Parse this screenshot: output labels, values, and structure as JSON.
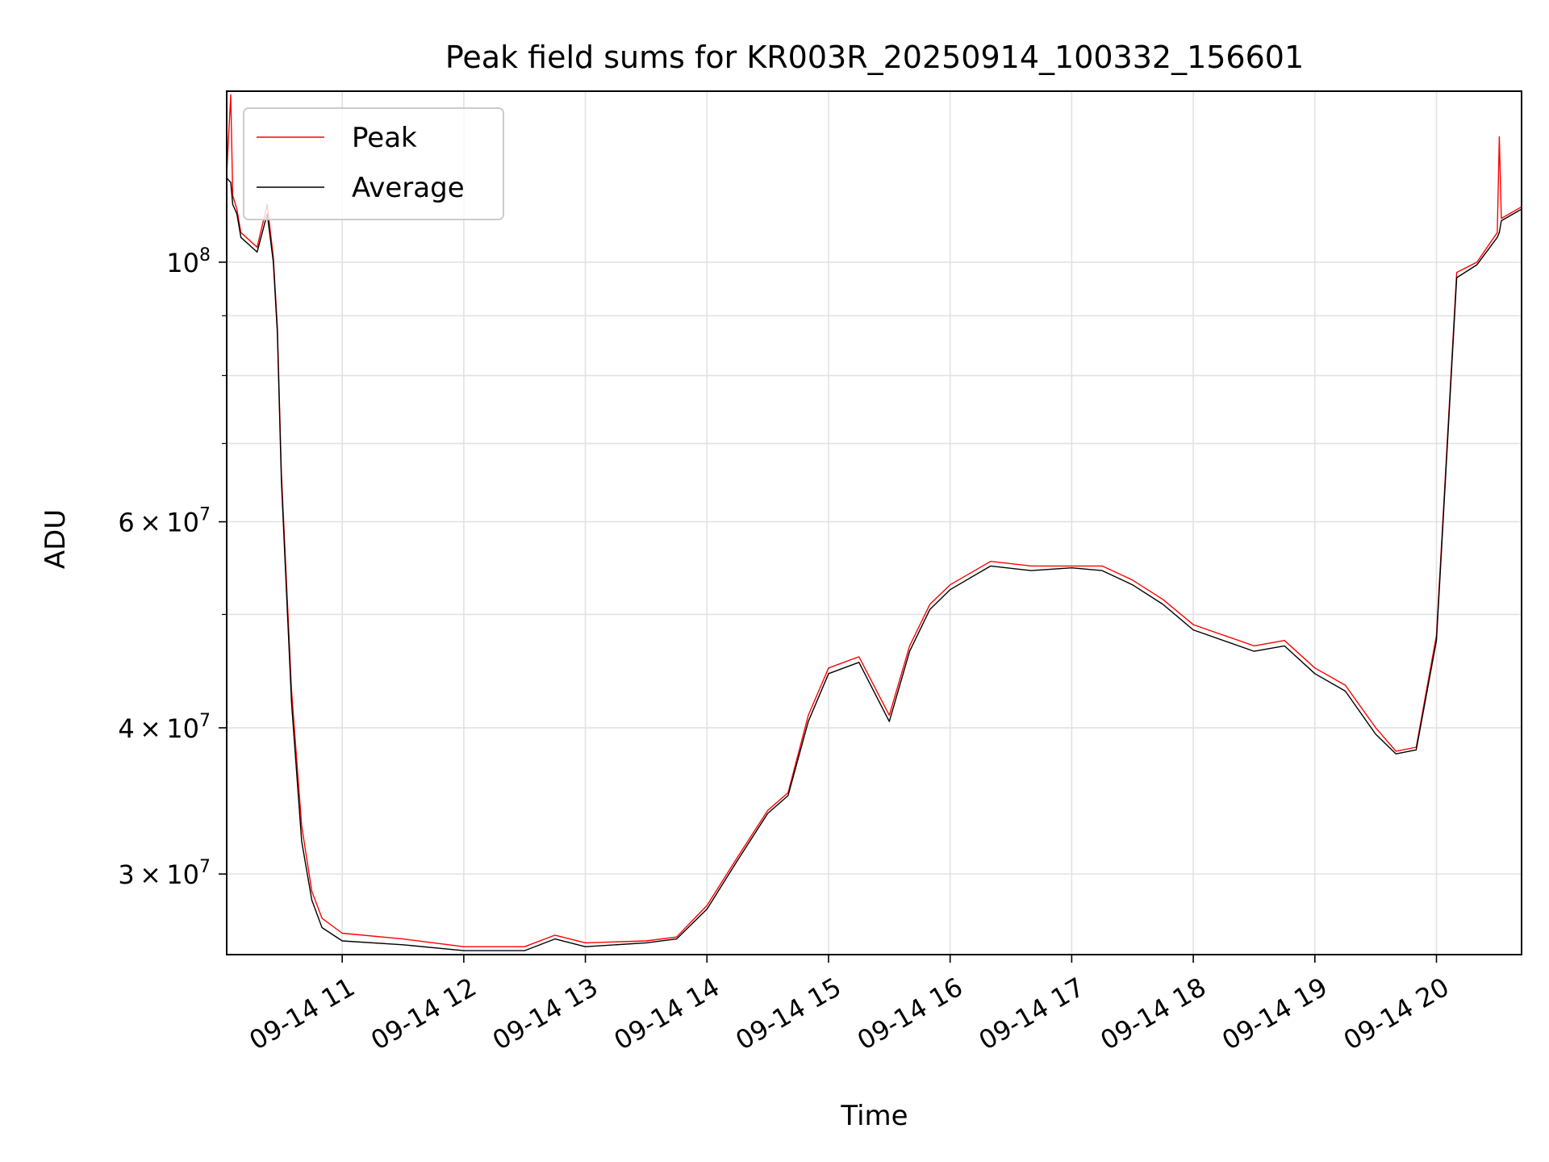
{
  "chart_data": {
    "type": "line",
    "title": "Peak field sums for KR003R_20250914_100332_156601",
    "xlabel": "Time",
    "ylabel": "ADU",
    "yscale": "log",
    "ylim": [
      25600000,
      140000000
    ],
    "xlim": [
      "2025-09-14T10:03",
      "2025-09-14T20:42"
    ],
    "grid": true,
    "legend": {
      "placement": "top-left",
      "entries": [
        "Peak",
        "Average"
      ]
    },
    "colors": {
      "Peak": "#ff0000",
      "Average": "#000000"
    },
    "x_ticks": [
      "09-14 11",
      "09-14 12",
      "09-14 13",
      "09-14 14",
      "09-14 15",
      "09-14 16",
      "09-14 17",
      "09-14 18",
      "09-14 19",
      "09-14 20"
    ],
    "y_ticks": [
      {
        "value": 100000000,
        "base": "10",
        "exp": "8",
        "coef": ""
      },
      {
        "value": 60000000,
        "base": "10",
        "exp": "7",
        "coef": "6"
      },
      {
        "value": 40000000,
        "base": "10",
        "exp": "7",
        "coef": "4"
      },
      {
        "value": 30000000,
        "base": "10",
        "exp": "7",
        "coef": "3"
      }
    ],
    "series": [
      {
        "name": "Peak",
        "x": [
          "2025-09-14T10:03",
          "2025-09-14T10:05",
          "2025-09-14T10:06",
          "2025-09-14T10:08",
          "2025-09-14T10:10",
          "2025-09-14T10:18",
          "2025-09-14T10:23",
          "2025-09-14T10:26",
          "2025-09-14T10:28",
          "2025-09-14T10:30",
          "2025-09-14T10:35",
          "2025-09-14T10:40",
          "2025-09-14T10:45",
          "2025-09-14T10:50",
          "2025-09-14T11:00",
          "2025-09-14T11:30",
          "2025-09-14T12:00",
          "2025-09-14T12:30",
          "2025-09-14T12:45",
          "2025-09-14T13:00",
          "2025-09-14T13:30",
          "2025-09-14T13:45",
          "2025-09-14T14:00",
          "2025-09-14T14:15",
          "2025-09-14T14:30",
          "2025-09-14T14:40",
          "2025-09-14T14:50",
          "2025-09-14T15:00",
          "2025-09-14T15:15",
          "2025-09-14T15:30",
          "2025-09-14T15:40",
          "2025-09-14T15:50",
          "2025-09-14T16:00",
          "2025-09-14T16:20",
          "2025-09-14T16:40",
          "2025-09-14T17:00",
          "2025-09-14T17:15",
          "2025-09-14T17:30",
          "2025-09-14T17:45",
          "2025-09-14T18:00",
          "2025-09-14T18:30",
          "2025-09-14T18:45",
          "2025-09-14T19:00",
          "2025-09-14T19:15",
          "2025-09-14T19:30",
          "2025-09-14T19:40",
          "2025-09-14T19:50",
          "2025-09-14T20:00",
          "2025-09-14T20:10",
          "2025-09-14T20:20",
          "2025-09-14T20:30",
          "2025-09-14T20:31",
          "2025-09-14T20:32",
          "2025-09-14T20:40",
          "2025-09-14T20:42"
        ],
        "y": [
          119000000,
          139000000,
          114000000,
          111000000,
          106000000,
          103000000,
          112000000,
          101000000,
          88000000,
          66000000,
          43000000,
          33000000,
          29000000,
          27500000,
          26700000,
          26400000,
          26000000,
          26000000,
          26600000,
          26200000,
          26300000,
          26500000,
          28200000,
          31000000,
          34000000,
          35200000,
          41000000,
          45000000,
          46000000,
          41000000,
          47000000,
          51000000,
          53000000,
          55500000,
          55000000,
          55000000,
          55000000,
          53500000,
          51500000,
          49000000,
          47000000,
          47500000,
          45000000,
          43500000,
          40000000,
          38200000,
          38500000,
          48000000,
          98000000,
          100000000,
          106000000,
          128000000,
          109000000,
          111000000,
          111500000
        ]
      },
      {
        "name": "Average",
        "x": [
          "2025-09-14T10:03",
          "2025-09-14T10:05",
          "2025-09-14T10:06",
          "2025-09-14T10:08",
          "2025-09-14T10:10",
          "2025-09-14T10:18",
          "2025-09-14T10:23",
          "2025-09-14T10:26",
          "2025-09-14T10:28",
          "2025-09-14T10:30",
          "2025-09-14T10:35",
          "2025-09-14T10:40",
          "2025-09-14T10:45",
          "2025-09-14T10:50",
          "2025-09-14T11:00",
          "2025-09-14T11:30",
          "2025-09-14T12:00",
          "2025-09-14T12:30",
          "2025-09-14T12:45",
          "2025-09-14T13:00",
          "2025-09-14T13:30",
          "2025-09-14T13:45",
          "2025-09-14T14:00",
          "2025-09-14T14:15",
          "2025-09-14T14:30",
          "2025-09-14T14:40",
          "2025-09-14T14:50",
          "2025-09-14T15:00",
          "2025-09-14T15:15",
          "2025-09-14T15:30",
          "2025-09-14T15:40",
          "2025-09-14T15:50",
          "2025-09-14T16:00",
          "2025-09-14T16:20",
          "2025-09-14T16:40",
          "2025-09-14T17:00",
          "2025-09-14T17:15",
          "2025-09-14T17:30",
          "2025-09-14T17:45",
          "2025-09-14T18:00",
          "2025-09-14T18:30",
          "2025-09-14T18:45",
          "2025-09-14T19:00",
          "2025-09-14T19:15",
          "2025-09-14T19:30",
          "2025-09-14T19:40",
          "2025-09-14T19:50",
          "2025-09-14T20:00",
          "2025-09-14T20:10",
          "2025-09-14T20:20",
          "2025-09-14T20:30",
          "2025-09-14T20:31",
          "2025-09-14T20:32",
          "2025-09-14T20:40",
          "2025-09-14T20:42"
        ],
        "y": [
          118000000,
          117000000,
          112000000,
          110000000,
          105000000,
          102000000,
          110000000,
          100000000,
          87000000,
          65000000,
          42000000,
          32000000,
          28500000,
          27000000,
          26300000,
          26100000,
          25800000,
          25800000,
          26400000,
          26000000,
          26200000,
          26400000,
          28000000,
          30800000,
          33800000,
          35000000,
          40500000,
          44500000,
          45500000,
          40500000,
          46500000,
          50500000,
          52500000,
          55000000,
          54500000,
          54800000,
          54500000,
          53000000,
          51000000,
          48500000,
          46500000,
          47000000,
          44500000,
          43000000,
          39500000,
          38000000,
          38300000,
          47500000,
          97000000,
          99500000,
          105000000,
          106000000,
          108500000,
          110500000,
          111000000
        ]
      }
    ]
  }
}
